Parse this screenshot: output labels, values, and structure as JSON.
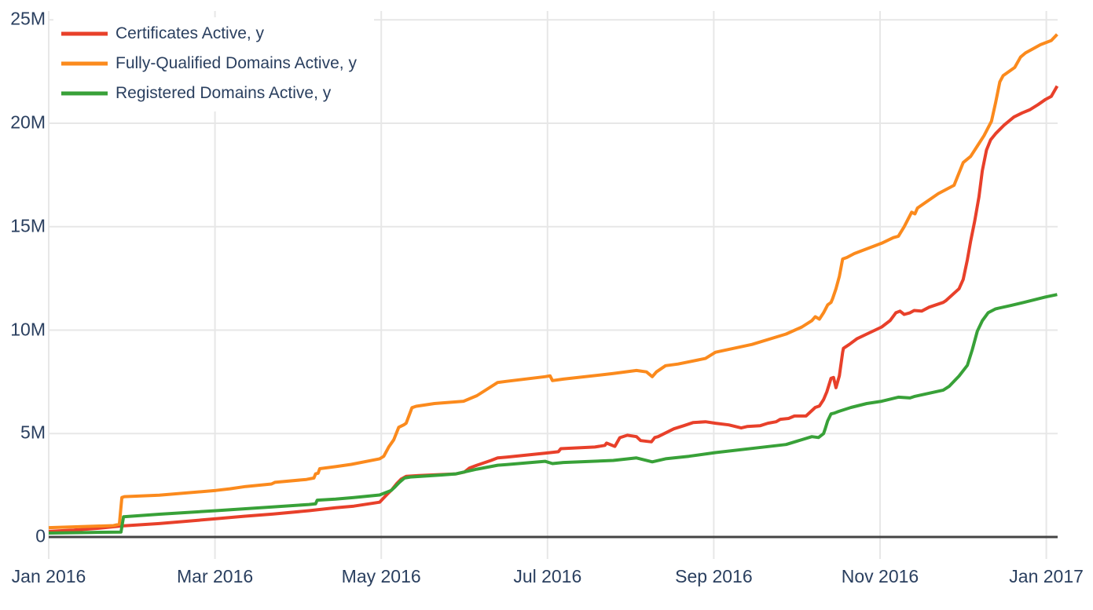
{
  "chart_data": {
    "type": "line",
    "title": "",
    "xlabel": "",
    "ylabel": "",
    "x_unit": "months since Jan 1 2016",
    "y_unit": "millions",
    "x_range": [
      0,
      12.14
    ],
    "y_range": [
      -1.06,
      25.4
    ],
    "grid": true,
    "legend_position": "top-left-inside",
    "colors": {
      "grid": "#e7e7e7",
      "zeroline": "#444444",
      "text": "#2a3f5f",
      "background": "#ffffff"
    },
    "y_ticks": [
      {
        "label": "0",
        "v": 0
      },
      {
        "label": "5M",
        "v": 5
      },
      {
        "label": "10M",
        "v": 10
      },
      {
        "label": "15M",
        "v": 15
      },
      {
        "label": "20M",
        "v": 20
      },
      {
        "label": "25M",
        "v": 25
      }
    ],
    "x_ticks": [
      {
        "label": "Jan 2016",
        "m": 0
      },
      {
        "label": "Mar 2016",
        "m": 2
      },
      {
        "label": "May 2016",
        "m": 4
      },
      {
        "label": "Jul 2016",
        "m": 6
      },
      {
        "label": "Sep 2016",
        "m": 8
      },
      {
        "label": "Nov 2016",
        "m": 10
      },
      {
        "label": "Jan 2017",
        "m": 12
      }
    ],
    "series": [
      {
        "name": "Certificates Active, y",
        "color": "#e8402a",
        "points": [
          [
            0,
            0.27
          ],
          [
            0.3,
            0.33
          ],
          [
            0.6,
            0.42
          ],
          [
            0.87,
            0.53
          ],
          [
            1.33,
            0.65
          ],
          [
            2.01,
            0.88
          ],
          [
            2.35,
            1.0
          ],
          [
            2.7,
            1.11
          ],
          [
            3.13,
            1.27
          ],
          [
            3.45,
            1.41
          ],
          [
            3.67,
            1.49
          ],
          [
            3.98,
            1.68
          ],
          [
            4.07,
            2.06
          ],
          [
            4.13,
            2.3
          ],
          [
            4.19,
            2.6
          ],
          [
            4.24,
            2.8
          ],
          [
            4.3,
            2.93
          ],
          [
            4.45,
            2.97
          ],
          [
            4.9,
            3.05
          ],
          [
            5.0,
            3.14
          ],
          [
            5.06,
            3.33
          ],
          [
            5.15,
            3.47
          ],
          [
            5.32,
            3.7
          ],
          [
            5.4,
            3.82
          ],
          [
            5.51,
            3.86
          ],
          [
            5.97,
            4.05
          ],
          [
            6.13,
            4.12
          ],
          [
            6.16,
            4.27
          ],
          [
            6.57,
            4.35
          ],
          [
            6.69,
            4.43
          ],
          [
            6.71,
            4.54
          ],
          [
            6.81,
            4.38
          ],
          [
            6.87,
            4.8
          ],
          [
            6.96,
            4.92
          ],
          [
            7.07,
            4.85
          ],
          [
            7.12,
            4.66
          ],
          [
            7.25,
            4.6
          ],
          [
            7.29,
            4.81
          ],
          [
            7.33,
            4.85
          ],
          [
            7.52,
            5.23
          ],
          [
            7.64,
            5.38
          ],
          [
            7.75,
            5.53
          ],
          [
            7.9,
            5.57
          ],
          [
            8.02,
            5.5
          ],
          [
            8.18,
            5.42
          ],
          [
            8.33,
            5.27
          ],
          [
            8.4,
            5.34
          ],
          [
            8.56,
            5.38
          ],
          [
            8.65,
            5.5
          ],
          [
            8.75,
            5.57
          ],
          [
            8.8,
            5.69
          ],
          [
            8.9,
            5.73
          ],
          [
            8.97,
            5.85
          ],
          [
            9.11,
            5.85
          ],
          [
            9.15,
            6.0
          ],
          [
            9.22,
            6.26
          ],
          [
            9.27,
            6.33
          ],
          [
            9.32,
            6.64
          ],
          [
            9.36,
            7.02
          ],
          [
            9.41,
            7.67
          ],
          [
            9.44,
            7.71
          ],
          [
            9.47,
            7.22
          ],
          [
            9.51,
            7.79
          ],
          [
            9.55,
            8.93
          ],
          [
            9.56,
            9.12
          ],
          [
            9.63,
            9.31
          ],
          [
            9.72,
            9.58
          ],
          [
            9.84,
            9.81
          ],
          [
            10.02,
            10.15
          ],
          [
            10.12,
            10.46
          ],
          [
            10.19,
            10.84
          ],
          [
            10.24,
            10.92
          ],
          [
            10.29,
            10.76
          ],
          [
            10.36,
            10.84
          ],
          [
            10.41,
            10.95
          ],
          [
            10.5,
            10.92
          ],
          [
            10.59,
            11.11
          ],
          [
            10.76,
            11.34
          ],
          [
            10.79,
            11.42
          ],
          [
            10.95,
            12.0
          ],
          [
            11.0,
            12.45
          ],
          [
            11.05,
            13.4
          ],
          [
            11.09,
            14.3
          ],
          [
            11.14,
            15.3
          ],
          [
            11.19,
            16.45
          ],
          [
            11.23,
            17.7
          ],
          [
            11.28,
            18.7
          ],
          [
            11.33,
            19.2
          ],
          [
            11.39,
            19.5
          ],
          [
            11.49,
            19.9
          ],
          [
            11.61,
            20.3
          ],
          [
            11.71,
            20.5
          ],
          [
            11.8,
            20.65
          ],
          [
            11.9,
            20.9
          ],
          [
            11.99,
            21.15
          ],
          [
            12.06,
            21.3
          ],
          [
            12.13,
            21.8
          ]
        ]
      },
      {
        "name": "Fully-Qualified Domains Active, y",
        "color": "#fb8a1d",
        "points": [
          [
            0,
            0.45
          ],
          [
            0.4,
            0.5
          ],
          [
            0.78,
            0.55
          ],
          [
            0.85,
            0.62
          ],
          [
            0.88,
            1.91
          ],
          [
            0.91,
            1.95
          ],
          [
            1.33,
            2.02
          ],
          [
            2.01,
            2.25
          ],
          [
            2.18,
            2.33
          ],
          [
            2.37,
            2.44
          ],
          [
            2.68,
            2.56
          ],
          [
            2.72,
            2.64
          ],
          [
            3.1,
            2.78
          ],
          [
            3.19,
            2.85
          ],
          [
            3.21,
            3.05
          ],
          [
            3.24,
            3.08
          ],
          [
            3.26,
            3.3
          ],
          [
            3.45,
            3.4
          ],
          [
            3.64,
            3.51
          ],
          [
            3.98,
            3.78
          ],
          [
            4.03,
            3.9
          ],
          [
            4.09,
            4.35
          ],
          [
            4.15,
            4.7
          ],
          [
            4.21,
            5.3
          ],
          [
            4.27,
            5.42
          ],
          [
            4.3,
            5.5
          ],
          [
            4.37,
            6.25
          ],
          [
            4.42,
            6.32
          ],
          [
            4.64,
            6.45
          ],
          [
            4.99,
            6.56
          ],
          [
            5.15,
            6.83
          ],
          [
            5.4,
            7.47
          ],
          [
            5.5,
            7.52
          ],
          [
            5.97,
            7.75
          ],
          [
            6.03,
            7.79
          ],
          [
            6.06,
            7.56
          ],
          [
            6.19,
            7.63
          ],
          [
            6.79,
            7.9
          ],
          [
            7.07,
            8.05
          ],
          [
            7.19,
            7.98
          ],
          [
            7.26,
            7.75
          ],
          [
            7.31,
            7.98
          ],
          [
            7.42,
            8.28
          ],
          [
            7.57,
            8.36
          ],
          [
            7.9,
            8.63
          ],
          [
            8.02,
            8.93
          ],
          [
            8.46,
            9.31
          ],
          [
            8.87,
            9.81
          ],
          [
            9.06,
            10.15
          ],
          [
            9.18,
            10.46
          ],
          [
            9.22,
            10.65
          ],
          [
            9.27,
            10.53
          ],
          [
            9.32,
            10.84
          ],
          [
            9.37,
            11.22
          ],
          [
            9.41,
            11.34
          ],
          [
            9.43,
            11.53
          ],
          [
            9.47,
            12.0
          ],
          [
            9.51,
            12.6
          ],
          [
            9.55,
            13.44
          ],
          [
            9.6,
            13.51
          ],
          [
            9.69,
            13.7
          ],
          [
            9.82,
            13.9
          ],
          [
            10.02,
            14.2
          ],
          [
            10.16,
            14.47
          ],
          [
            10.22,
            14.54
          ],
          [
            10.29,
            15.0
          ],
          [
            10.38,
            15.7
          ],
          [
            10.42,
            15.62
          ],
          [
            10.45,
            15.9
          ],
          [
            10.7,
            16.6
          ],
          [
            10.89,
            17.0
          ],
          [
            10.95,
            17.6
          ],
          [
            11.0,
            18.1
          ],
          [
            11.09,
            18.4
          ],
          [
            11.17,
            18.9
          ],
          [
            11.25,
            19.4
          ],
          [
            11.34,
            20.1
          ],
          [
            11.39,
            21.0
          ],
          [
            11.44,
            22.0
          ],
          [
            11.48,
            22.3
          ],
          [
            11.55,
            22.5
          ],
          [
            11.62,
            22.7
          ],
          [
            11.69,
            23.2
          ],
          [
            11.75,
            23.4
          ],
          [
            11.84,
            23.6
          ],
          [
            11.93,
            23.8
          ],
          [
            12.06,
            24.0
          ],
          [
            12.13,
            24.3
          ]
        ]
      },
      {
        "name": "Registered Domains Active, y",
        "color": "#38a138",
        "points": [
          [
            0,
            0.19
          ],
          [
            0.5,
            0.22
          ],
          [
            0.87,
            0.24
          ],
          [
            0.9,
            0.98
          ],
          [
            1.33,
            1.1
          ],
          [
            2.01,
            1.27
          ],
          [
            2.69,
            1.45
          ],
          [
            3.13,
            1.57
          ],
          [
            3.21,
            1.6
          ],
          [
            3.23,
            1.78
          ],
          [
            3.45,
            1.83
          ],
          [
            3.67,
            1.91
          ],
          [
            3.98,
            2.03
          ],
          [
            4.12,
            2.25
          ],
          [
            4.16,
            2.4
          ],
          [
            4.22,
            2.65
          ],
          [
            4.28,
            2.85
          ],
          [
            4.35,
            2.9
          ],
          [
            4.73,
            3.0
          ],
          [
            4.9,
            3.05
          ],
          [
            5.15,
            3.28
          ],
          [
            5.4,
            3.47
          ],
          [
            5.51,
            3.5
          ],
          [
            5.97,
            3.66
          ],
          [
            6.06,
            3.55
          ],
          [
            6.19,
            3.6
          ],
          [
            6.79,
            3.7
          ],
          [
            7.07,
            3.82
          ],
          [
            7.26,
            3.63
          ],
          [
            7.42,
            3.78
          ],
          [
            7.7,
            3.9
          ],
          [
            8.02,
            4.08
          ],
          [
            8.5,
            4.3
          ],
          [
            8.87,
            4.47
          ],
          [
            9.18,
            4.85
          ],
          [
            9.26,
            4.81
          ],
          [
            9.32,
            5.0
          ],
          [
            9.34,
            5.23
          ],
          [
            9.37,
            5.61
          ],
          [
            9.41,
            5.95
          ],
          [
            9.45,
            5.99
          ],
          [
            9.5,
            6.07
          ],
          [
            9.65,
            6.26
          ],
          [
            9.84,
            6.45
          ],
          [
            10.02,
            6.56
          ],
          [
            10.22,
            6.76
          ],
          [
            10.36,
            6.72
          ],
          [
            10.41,
            6.79
          ],
          [
            10.76,
            7.1
          ],
          [
            10.83,
            7.28
          ],
          [
            10.95,
            7.78
          ],
          [
            11.05,
            8.3
          ],
          [
            11.11,
            9.06
          ],
          [
            11.17,
            9.95
          ],
          [
            11.23,
            10.45
          ],
          [
            11.3,
            10.84
          ],
          [
            11.39,
            11.03
          ],
          [
            11.58,
            11.2
          ],
          [
            11.73,
            11.34
          ],
          [
            11.99,
            11.6
          ],
          [
            12.13,
            11.72
          ]
        ]
      }
    ]
  }
}
